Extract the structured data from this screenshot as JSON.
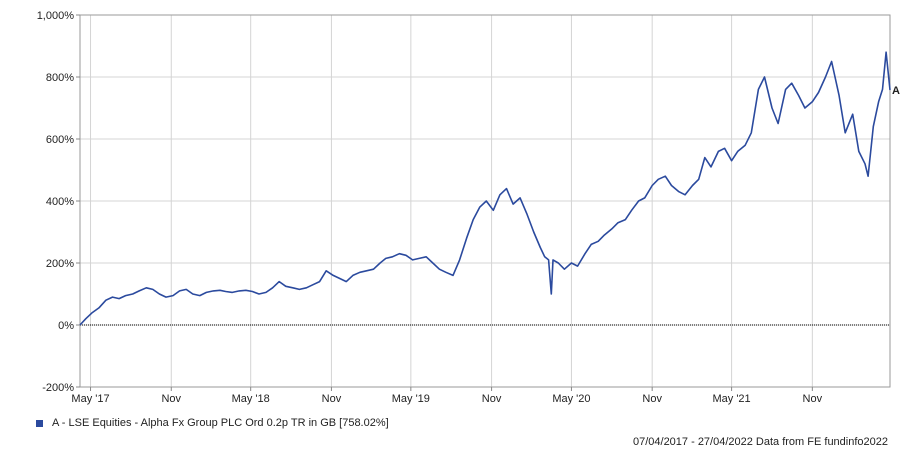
{
  "chart_data": {
    "type": "line",
    "y_axis": {
      "ylim": [
        -200,
        1000
      ],
      "ticks": [
        -200,
        0,
        200,
        400,
        600,
        800,
        1000
      ],
      "tick_labels": [
        "-200%",
        "0%",
        "200%",
        "400%",
        "600%",
        "800%",
        "1,000%"
      ]
    },
    "x_axis": {
      "range": [
        "2017-04-07",
        "2022-04-27"
      ],
      "ticks": [
        {
          "date": "2017-05-01",
          "label": "May '17"
        },
        {
          "date": "2017-11-01",
          "label": "Nov"
        },
        {
          "date": "2018-05-01",
          "label": "May '18"
        },
        {
          "date": "2018-11-01",
          "label": "Nov"
        },
        {
          "date": "2019-05-01",
          "label": "May '19"
        },
        {
          "date": "2019-11-01",
          "label": "Nov"
        },
        {
          "date": "2020-05-01",
          "label": "May '20"
        },
        {
          "date": "2020-11-01",
          "label": "Nov"
        },
        {
          "date": "2021-05-01",
          "label": "May '21"
        },
        {
          "date": "2021-11-01",
          "label": "Nov"
        }
      ]
    },
    "grid": true,
    "zero_line": "dotted",
    "series": [
      {
        "name": "A - LSE Equities - Alpha Fx Group PLC Ord 0.2p TR in GB [758.02%]",
        "marker_label": "A",
        "color": "#2b4a9e",
        "x": [
          "2017-04-07",
          "2017-04-20",
          "2017-05-05",
          "2017-05-20",
          "2017-06-05",
          "2017-06-20",
          "2017-07-05",
          "2017-07-20",
          "2017-08-05",
          "2017-08-20",
          "2017-09-05",
          "2017-09-20",
          "2017-10-05",
          "2017-10-20",
          "2017-11-05",
          "2017-11-20",
          "2017-12-05",
          "2017-12-20",
          "2018-01-05",
          "2018-01-20",
          "2018-02-05",
          "2018-02-20",
          "2018-03-05",
          "2018-03-20",
          "2018-04-05",
          "2018-04-20",
          "2018-05-05",
          "2018-05-20",
          "2018-06-05",
          "2018-06-20",
          "2018-07-05",
          "2018-07-20",
          "2018-08-05",
          "2018-08-20",
          "2018-09-05",
          "2018-09-20",
          "2018-10-05",
          "2018-10-20",
          "2018-11-05",
          "2018-11-20",
          "2018-12-05",
          "2018-12-20",
          "2019-01-05",
          "2019-01-20",
          "2019-02-05",
          "2019-02-20",
          "2019-03-05",
          "2019-03-20",
          "2019-04-05",
          "2019-04-20",
          "2019-05-05",
          "2019-05-20",
          "2019-06-05",
          "2019-06-20",
          "2019-07-05",
          "2019-07-20",
          "2019-08-05",
          "2019-08-20",
          "2019-09-05",
          "2019-09-20",
          "2019-10-05",
          "2019-10-20",
          "2019-11-05",
          "2019-11-20",
          "2019-12-05",
          "2019-12-20",
          "2020-01-05",
          "2020-01-20",
          "2020-02-05",
          "2020-02-20",
          "2020-03-01",
          "2020-03-10",
          "2020-03-16",
          "2020-03-20",
          "2020-04-01",
          "2020-04-15",
          "2020-05-01",
          "2020-05-15",
          "2020-06-01",
          "2020-06-15",
          "2020-07-01",
          "2020-07-15",
          "2020-08-01",
          "2020-08-15",
          "2020-09-01",
          "2020-09-15",
          "2020-10-01",
          "2020-10-15",
          "2020-11-01",
          "2020-11-15",
          "2020-12-01",
          "2020-12-15",
          "2021-01-01",
          "2021-01-15",
          "2021-02-01",
          "2021-02-15",
          "2021-03-01",
          "2021-03-15",
          "2021-04-01",
          "2021-04-15",
          "2021-05-01",
          "2021-05-15",
          "2021-06-01",
          "2021-06-15",
          "2021-07-01",
          "2021-07-15",
          "2021-08-01",
          "2021-08-15",
          "2021-09-01",
          "2021-09-15",
          "2021-10-01",
          "2021-10-15",
          "2021-11-01",
          "2021-11-15",
          "2021-12-01",
          "2021-12-15",
          "2022-01-01",
          "2022-01-15",
          "2022-02-01",
          "2022-02-15",
          "2022-03-01",
          "2022-03-08",
          "2022-03-20",
          "2022-04-01",
          "2022-04-10",
          "2022-04-18",
          "2022-04-27"
        ],
        "values": [
          0,
          20,
          40,
          55,
          80,
          90,
          85,
          95,
          100,
          110,
          120,
          115,
          100,
          90,
          95,
          110,
          115,
          100,
          95,
          105,
          110,
          112,
          108,
          105,
          110,
          112,
          108,
          100,
          105,
          120,
          140,
          125,
          120,
          115,
          120,
          130,
          140,
          175,
          160,
          150,
          140,
          160,
          170,
          175,
          180,
          200,
          215,
          220,
          230,
          225,
          210,
          215,
          220,
          200,
          180,
          170,
          160,
          210,
          280,
          340,
          380,
          400,
          370,
          420,
          440,
          390,
          410,
          360,
          300,
          250,
          220,
          210,
          100,
          210,
          200,
          180,
          200,
          190,
          230,
          260,
          270,
          290,
          310,
          330,
          340,
          370,
          400,
          410,
          450,
          470,
          480,
          450,
          430,
          420,
          450,
          470,
          540,
          510,
          560,
          570,
          530,
          560,
          580,
          620,
          760,
          800,
          700,
          650,
          760,
          780,
          740,
          700,
          720,
          750,
          800,
          850,
          740,
          620,
          680,
          560,
          520,
          480,
          640,
          720,
          760,
          880,
          758.02
        ]
      }
    ],
    "footer_text": "07/04/2017 - 27/04/2022 Data from FE fundinfo2022"
  }
}
